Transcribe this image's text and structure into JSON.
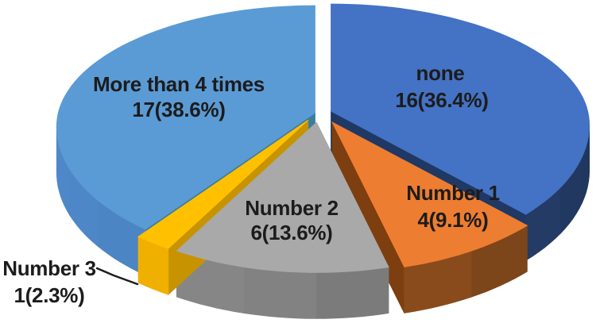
{
  "chart_data": {
    "type": "pie",
    "title": "",
    "style": "3d-exploded",
    "direction": "clockwise",
    "start_angle_deg": 0,
    "legend": "none (labels drawn on slices)",
    "background": "#FFFFFF",
    "text_color": "#1C1C1C",
    "total": 44,
    "slices": [
      {
        "label": "none",
        "value": 16,
        "pct": 36.4,
        "display": "16(36.4%)",
        "lines": [
          "none",
          "16(36.4%)"
        ],
        "color": "#4472C4",
        "side": "#2E4E86",
        "face": "#1F3864"
      },
      {
        "label": "Number 1",
        "value": 4,
        "pct": 9.1,
        "display": "4(9.1%)",
        "lines": [
          "Number 1",
          "4(9.1%)"
        ],
        "color": "#ED7D31",
        "side": "#9C5620",
        "face": "#7D3E10"
      },
      {
        "label": "Number 2",
        "value": 6,
        "pct": 13.6,
        "display": "6(13.6%)",
        "lines": [
          "Number 2",
          "6(13.6%)"
        ],
        "color": "#A9A9A9",
        "side": "#808080",
        "face": "#6F6F6F"
      },
      {
        "label": "Number 3",
        "value": 1,
        "pct": 2.3,
        "display": "1(2.3%)",
        "lines": [
          "Number 3",
          "1(2.3%)"
        ],
        "color": "#FFC000",
        "side": "#E0A400",
        "face": "#C79300"
      },
      {
        "label": "More than 4 times",
        "value": 17,
        "pct": 38.6,
        "display": "17(38.6%)",
        "lines": [
          "More than 4 times",
          "17(38.6%)"
        ],
        "color": "#5B9BD5",
        "side": "#467AB3",
        "face": "#3A7D9E"
      }
    ]
  }
}
